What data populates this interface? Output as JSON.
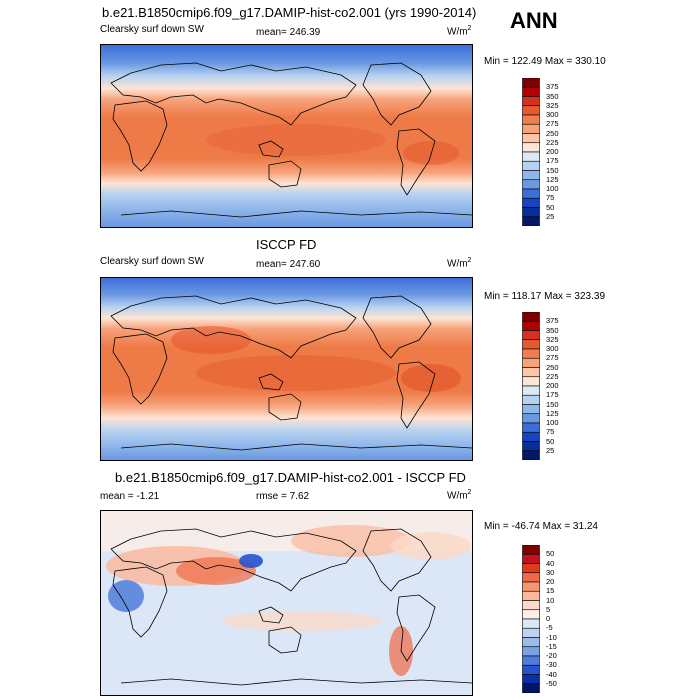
{
  "season": "ANN",
  "panels": [
    {
      "id": "model",
      "title": "b.e21.B1850cmip6.f09_g17.DAMIP-hist-co2.001 (yrs 1990-2014)",
      "left_label": "Clearsky surf down SW",
      "center_label": "mean= 246.39",
      "units_base": "W/m",
      "units_exp": "2",
      "minmax": "Min = 122.49 Max = 330.10",
      "levels": [
        "375",
        "350",
        "325",
        "300",
        "275",
        "250",
        "225",
        "200",
        "175",
        "150",
        "125",
        "100",
        "75",
        "50",
        "25"
      ],
      "colors": [
        "#7f0000",
        "#b30000",
        "#d7301f",
        "#e65a2f",
        "#f07f4d",
        "#f7a27a",
        "#fcc5a8",
        "#fde4d4",
        "#dbe8f7",
        "#b7d2f1",
        "#90b7ea",
        "#6a98e2",
        "#3b6fd8",
        "#1446c4",
        "#082e9b",
        "#001a66"
      ]
    },
    {
      "id": "obs",
      "title": "ISCCP FD",
      "left_label": "Clearsky surf down SW",
      "center_label": "mean= 247.60",
      "units_base": "W/m",
      "units_exp": "2",
      "minmax": "Min = 118.17 Max = 323.39",
      "levels": [
        "375",
        "350",
        "325",
        "300",
        "275",
        "250",
        "225",
        "200",
        "175",
        "150",
        "125",
        "100",
        "75",
        "50",
        "25"
      ],
      "colors": [
        "#7f0000",
        "#b30000",
        "#d7301f",
        "#e65a2f",
        "#f07f4d",
        "#f7a27a",
        "#fcc5a8",
        "#fde4d4",
        "#dbe8f7",
        "#b7d2f1",
        "#90b7ea",
        "#6a98e2",
        "#3b6fd8",
        "#1446c4",
        "#082e9b",
        "#001a66"
      ]
    },
    {
      "id": "diff",
      "title": "b.e21.B1850cmip6.f09_g17.DAMIP-hist-co2.001 - ISCCP FD",
      "left_label": "mean =  -1.21",
      "center_label": "rmse =  7.62",
      "units_base": "W/m",
      "units_exp": "2",
      "minmax": "Min = -46.74 Max =  31.24",
      "levels": [
        "50",
        "40",
        "30",
        "20",
        "15",
        "10",
        "5",
        "0",
        "-5",
        "-10",
        "-15",
        "-20",
        "-30",
        "-40",
        "-50"
      ],
      "colors": [
        "#7f0000",
        "#c1121f",
        "#de3a20",
        "#ef6a44",
        "#f6956f",
        "#fbb89a",
        "#fdd9c7",
        "#fdeee6",
        "#dbe6f6",
        "#bfd3f0",
        "#9cbbe9",
        "#7aa1e2",
        "#4f7ddb",
        "#2552cd",
        "#0b2fa8",
        "#001466"
      ]
    }
  ]
}
